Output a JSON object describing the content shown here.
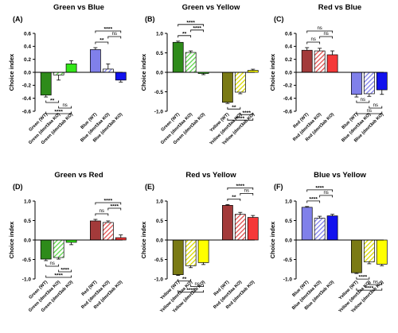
{
  "chart_data": [
    {
      "type": "bar",
      "panel": "(A)",
      "title": "Green vs Blue",
      "ylabel": "Choice index",
      "ylim": [
        -0.6,
        0.6
      ],
      "yticks": [
        -0.6,
        -0.4,
        -0.2,
        0,
        0.2,
        0.4,
        0.6
      ],
      "categories": [
        "Green (WT)",
        "Green (dmrt3aa KO)",
        "Green (dmrt3ab KO)",
        "Blue (WT)",
        "Blue (dmrt3aa KO)",
        "Blue (dmrt3ab KO)"
      ],
      "values": [
        -0.35,
        -0.04,
        0.13,
        0.35,
        0.05,
        -0.12
      ],
      "errors": [
        0.03,
        0.08,
        0.05,
        0.03,
        0.08,
        0.03
      ],
      "colors": [
        "#2e8b1a",
        "#5cd64a",
        "#33e619",
        "#8080ea",
        "#8080ea",
        "#1212ee"
      ],
      "hatched": [
        false,
        true,
        false,
        false,
        true,
        false
      ],
      "comparisons": [
        {
          "from": 0,
          "to": 1,
          "label": "**"
        },
        {
          "from": 1,
          "to": 2,
          "label": "ns"
        },
        {
          "from": 0,
          "to": 2,
          "label": "****"
        },
        {
          "from": 3,
          "to": 4,
          "label": "**"
        },
        {
          "from": 4,
          "to": 5,
          "label": "ns"
        },
        {
          "from": 3,
          "to": 5,
          "label": "****"
        }
      ]
    },
    {
      "type": "bar",
      "panel": "(B)",
      "title": "Green vs Yellow",
      "ylabel": "Choice index",
      "ylim": [
        -1.0,
        1.0
      ],
      "yticks": [
        -1.0,
        -0.5,
        0.0,
        0.5,
        1.0
      ],
      "categories": [
        "Green (WT)",
        "Green (dmrt3aa KO)",
        "Green (dmrt3ab KO)",
        "Yellow (WT)",
        "Yellow (dmrt3aa KO)",
        "Yellow (dmrt3ab KO)"
      ],
      "values": [
        0.77,
        0.51,
        -0.03,
        -0.77,
        -0.51,
        0.05
      ],
      "errors": [
        0.03,
        0.04,
        0.03,
        0.03,
        0.04,
        0.03
      ],
      "colors": [
        "#2e8b1a",
        "#5cd64a",
        "#33e619",
        "#7a7a14",
        "#d9d900",
        "#ffff00"
      ],
      "hatched": [
        false,
        true,
        false,
        false,
        true,
        false
      ],
      "comparisons": [
        {
          "from": 0,
          "to": 1,
          "label": "**"
        },
        {
          "from": 1,
          "to": 2,
          "label": "****"
        },
        {
          "from": 0,
          "to": 2,
          "label": "****"
        },
        {
          "from": 3,
          "to": 4,
          "label": "**"
        },
        {
          "from": 4,
          "to": 5,
          "label": "****"
        },
        {
          "from": 3,
          "to": 5,
          "label": "****"
        }
      ]
    },
    {
      "type": "bar",
      "panel": "(C)",
      "title": "Red vs Blue",
      "ylabel": "Choice index",
      "ylim": [
        -0.6,
        0.6
      ],
      "yticks": [
        -0.6,
        -0.4,
        -0.2,
        0,
        0.2,
        0.4,
        0.6
      ],
      "categories": [
        "Red (WT)",
        "Red (dmrt3aa KO)",
        "Red (dmrt3ab KO)",
        "Blue (WT)",
        "Blue (dmrt3aa KO)",
        "Blue (dmrt3ab KO)"
      ],
      "values": [
        0.34,
        0.33,
        0.27,
        -0.34,
        -0.33,
        -0.27
      ],
      "errors": [
        0.04,
        0.04,
        0.06,
        0.04,
        0.04,
        0.07
      ],
      "colors": [
        "#a33a3a",
        "#e05050",
        "#f53838",
        "#8080ea",
        "#8080ea",
        "#1212ee"
      ],
      "hatched": [
        false,
        true,
        false,
        false,
        true,
        false
      ],
      "comparisons": [
        {
          "from": 0,
          "to": 1,
          "label": "ns"
        },
        {
          "from": 1,
          "to": 2,
          "label": "ns"
        },
        {
          "from": 0,
          "to": 2,
          "label": "ns"
        },
        {
          "from": 3,
          "to": 4,
          "label": "ns"
        },
        {
          "from": 4,
          "to": 5,
          "label": "ns"
        },
        {
          "from": 3,
          "to": 5,
          "label": "ns"
        }
      ]
    },
    {
      "type": "bar",
      "panel": "(D)",
      "title": "Green vs Red",
      "ylabel": "Choice index",
      "ylim": [
        -1.0,
        1.0
      ],
      "yticks": [
        -1.0,
        -0.5,
        0.0,
        0.5,
        1.0
      ],
      "categories": [
        "Green (WT)",
        "Green (dmrt3aa KO)",
        "Green (dmrt3ab KO)",
        "Red (WT)",
        "Red (dmrt3aa KO)",
        "Red (dmrt3ab KO)"
      ],
      "values": [
        -0.49,
        -0.45,
        -0.06,
        0.49,
        0.45,
        0.06
      ],
      "errors": [
        0.04,
        0.04,
        0.06,
        0.04,
        0.04,
        0.07
      ],
      "colors": [
        "#2e8b1a",
        "#5cd64a",
        "#33e619",
        "#a33a3a",
        "#e05050",
        "#f53838"
      ],
      "hatched": [
        false,
        true,
        false,
        false,
        true,
        false
      ],
      "comparisons": [
        {
          "from": 0,
          "to": 1,
          "label": "ns"
        },
        {
          "from": 1,
          "to": 2,
          "label": "****"
        },
        {
          "from": 0,
          "to": 2,
          "label": "****"
        },
        {
          "from": 3,
          "to": 4,
          "label": "ns"
        },
        {
          "from": 4,
          "to": 5,
          "label": "****"
        },
        {
          "from": 3,
          "to": 5,
          "label": "****"
        }
      ]
    },
    {
      "type": "bar",
      "panel": "(E)",
      "title": "Red vs Yellow",
      "ylabel": "Choice index",
      "ylim": [
        -1.0,
        1.0
      ],
      "yticks": [
        -1.0,
        -0.5,
        0.0,
        0.5,
        1.0
      ],
      "categories": [
        "Yellow (WT)",
        "Yellow (dmrt3aa KO)",
        "Yellow (dmrt3ab KO)",
        "Red (WT)",
        "Red (dmrt3aa KO)",
        "Red (dmrt3ab KO)"
      ],
      "values": [
        -0.89,
        -0.66,
        -0.58,
        0.89,
        0.66,
        0.58
      ],
      "errors": [
        0.02,
        0.05,
        0.05,
        0.02,
        0.05,
        0.05
      ],
      "colors": [
        "#7a7a14",
        "#d9d900",
        "#ffff00",
        "#a33a3a",
        "#e05050",
        "#f53838"
      ],
      "hatched": [
        false,
        true,
        false,
        false,
        true,
        false
      ],
      "comparisons": [
        {
          "from": 0,
          "to": 1,
          "label": "**"
        },
        {
          "from": 1,
          "to": 2,
          "label": "ns"
        },
        {
          "from": 0,
          "to": 2,
          "label": "****"
        },
        {
          "from": 3,
          "to": 4,
          "label": "**"
        },
        {
          "from": 4,
          "to": 5,
          "label": "ns"
        },
        {
          "from": 3,
          "to": 5,
          "label": "****"
        }
      ]
    },
    {
      "type": "bar",
      "panel": "(F)",
      "title": "Blue vs Yellow",
      "ylabel": "Choice index",
      "ylim": [
        -1.0,
        1.0
      ],
      "yticks": [
        -1.0,
        -0.5,
        0.0,
        0.5,
        1.0
      ],
      "categories": [
        "Blue (WT)",
        "Blue (dmrt3aa KO)",
        "Blue (dmrt3ab KO)",
        "Yellow (WT)",
        "Yellow (dmrt3aa KO)",
        "Yellow (dmrt3ab KO)"
      ],
      "values": [
        0.84,
        0.56,
        0.62,
        -0.84,
        -0.56,
        -0.62
      ],
      "errors": [
        0.02,
        0.05,
        0.04,
        0.02,
        0.05,
        0.04
      ],
      "colors": [
        "#8080ea",
        "#8080ea",
        "#1212ee",
        "#7a7a14",
        "#d9d900",
        "#ffff00"
      ],
      "hatched": [
        false,
        true,
        false,
        false,
        true,
        false
      ],
      "comparisons": [
        {
          "from": 0,
          "to": 1,
          "label": "****"
        },
        {
          "from": 1,
          "to": 2,
          "label": "ns"
        },
        {
          "from": 0,
          "to": 2,
          "label": "****"
        },
        {
          "from": 3,
          "to": 4,
          "label": "****"
        },
        {
          "from": 4,
          "to": 5,
          "label": "ns"
        },
        {
          "from": 3,
          "to": 5,
          "label": "****"
        }
      ]
    }
  ]
}
